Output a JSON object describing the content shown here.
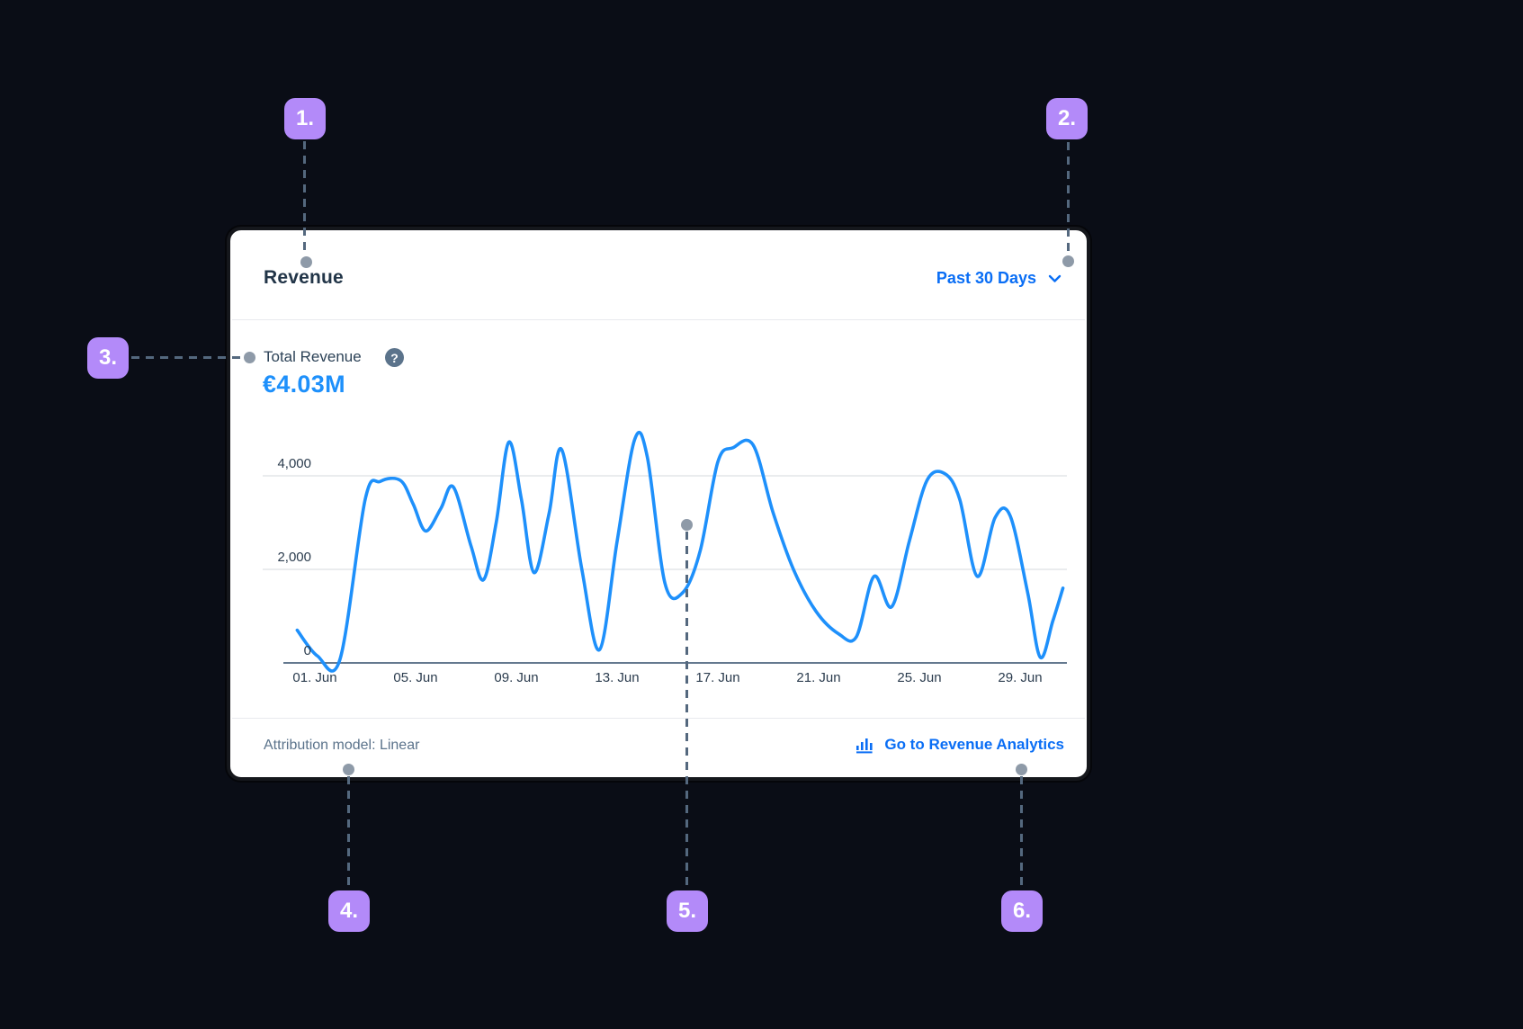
{
  "colors": {
    "background": "#0a0d16",
    "card_background": "#ffffff",
    "accent_blue": "#0a6ef5",
    "chart_line_blue": "#1e90fb",
    "badge_purple": "#b38af9",
    "connector_slate": "#54687e",
    "connector_dot_gray": "#8e9aa8",
    "text_dark": "#223548",
    "text_muted": "#5b738b",
    "gridline_gray": "#e3e6e9",
    "axis_slate": "#64798f"
  },
  "header": {
    "title": "Revenue",
    "range_label": "Past 30 Days"
  },
  "kpi": {
    "label": "Total Revenue",
    "help_glyph": "?",
    "value": "€4.03M"
  },
  "chart_data": {
    "type": "line",
    "series_name": "Total Revenue",
    "x_unit": "day of June",
    "x_tick_labels": [
      "01. Jun",
      "05. Jun",
      "09. Jun",
      "13. Jun",
      "17. Jun",
      "21. Jun",
      "25. Jun",
      "29. Jun"
    ],
    "yticks": [
      0,
      2000,
      4000
    ],
    "ytick_labels": [
      "0",
      "2,000",
      "4,000"
    ],
    "gridline_values": [
      2000,
      4000
    ],
    "ylim": [
      0,
      5000
    ],
    "grid": "horizontal-only",
    "legend": "none",
    "line_color": "#1e90fb",
    "points": [
      [
        0.3,
        700
      ],
      [
        1.1,
        150
      ],
      [
        2.0,
        80
      ],
      [
        3.0,
        3500
      ],
      [
        3.6,
        3880
      ],
      [
        4.4,
        3900
      ],
      [
        4.9,
        3400
      ],
      [
        5.4,
        2820
      ],
      [
        6.0,
        3300
      ],
      [
        6.5,
        3760
      ],
      [
        7.2,
        2500
      ],
      [
        7.7,
        1780
      ],
      [
        8.2,
        3000
      ],
      [
        8.7,
        4720
      ],
      [
        9.2,
        3500
      ],
      [
        9.7,
        1930
      ],
      [
        10.3,
        3200
      ],
      [
        10.8,
        4560
      ],
      [
        11.6,
        2000
      ],
      [
        12.3,
        280
      ],
      [
        13.0,
        2600
      ],
      [
        13.7,
        4780
      ],
      [
        14.2,
        4400
      ],
      [
        14.9,
        1700
      ],
      [
        15.6,
        1500
      ],
      [
        16.3,
        2400
      ],
      [
        17.0,
        4300
      ],
      [
        17.6,
        4600
      ],
      [
        18.4,
        4660
      ],
      [
        19.2,
        3200
      ],
      [
        20.0,
        2000
      ],
      [
        20.9,
        1100
      ],
      [
        21.8,
        620
      ],
      [
        22.5,
        560
      ],
      [
        23.2,
        1850
      ],
      [
        23.9,
        1200
      ],
      [
        24.6,
        2600
      ],
      [
        25.3,
        3900
      ],
      [
        26.0,
        4050
      ],
      [
        26.6,
        3500
      ],
      [
        27.3,
        1850
      ],
      [
        28.0,
        3100
      ],
      [
        28.6,
        3150
      ],
      [
        29.3,
        1500
      ],
      [
        29.8,
        120
      ],
      [
        30.3,
        900
      ],
      [
        30.7,
        1600
      ]
    ]
  },
  "footer": {
    "attribution": "Attribution model: Linear",
    "link_label": "Go to Revenue Analytics"
  },
  "annotations": {
    "badges": [
      {
        "label": "1."
      },
      {
        "label": "2."
      },
      {
        "label": "3."
      },
      {
        "label": "4."
      },
      {
        "label": "5."
      },
      {
        "label": "6."
      }
    ]
  },
  "icons": {
    "help": "question-mark-circle-icon",
    "range_chevron": "chevron-down-icon",
    "analytics_link": "bar-chart-icon"
  }
}
